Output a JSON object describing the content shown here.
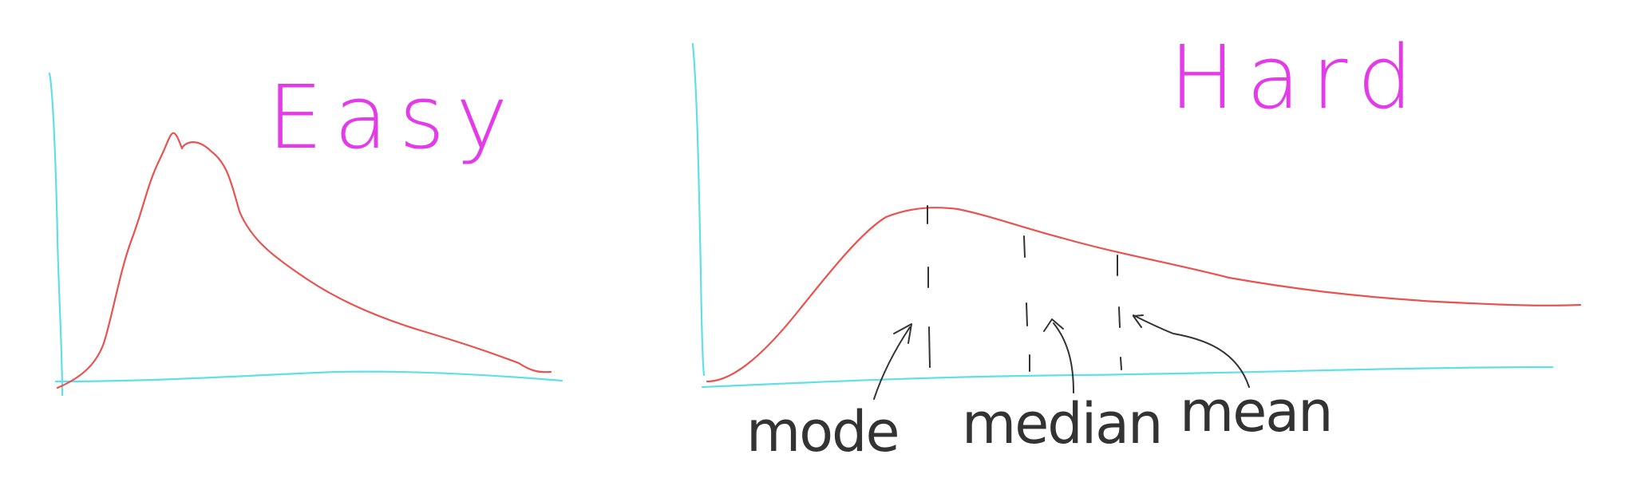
{
  "panels": [
    {
      "title": "Easy",
      "title_color": "#e33be8"
    },
    {
      "title": "Hard",
      "title_color": "#e33be8"
    }
  ],
  "labels": {
    "mode": "mode",
    "median": "median",
    "mean": "mean"
  },
  "colors": {
    "axis": "#5fe0e8",
    "curve": "#e8524f",
    "ink": "#333333"
  }
}
